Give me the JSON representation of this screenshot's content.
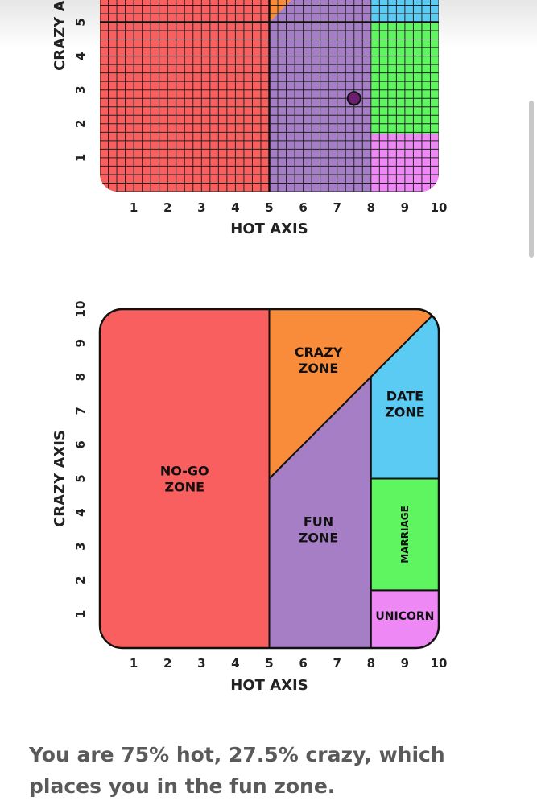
{
  "chart_data": [
    {
      "type": "scatter",
      "xlabel": "HOT AXIS",
      "ylabel": "CRAZY AXIS",
      "xticks": [
        "1",
        "2",
        "3",
        "4",
        "5",
        "6",
        "7",
        "8",
        "9",
        "10"
      ],
      "yticks": [
        "1",
        "2",
        "3",
        "4",
        "5"
      ],
      "xlim": [
        0,
        10
      ],
      "ylim": [
        0,
        10
      ],
      "grid": true,
      "point": {
        "x": 7.5,
        "y": 2.75
      },
      "colors": {
        "nogo": "#fa5f5f",
        "crazy": "#f98c3b",
        "fun": "#a67ec6",
        "date": "#5ccbf3",
        "marriage": "#5ef560",
        "unicorn": "#ee88f4",
        "point": "#6b1d6e"
      }
    },
    {
      "type": "area",
      "xlabel": "HOT AXIS",
      "ylabel": "CRAZY AXIS",
      "xticks": [
        "1",
        "2",
        "3",
        "4",
        "5",
        "6",
        "7",
        "8",
        "9",
        "10"
      ],
      "yticks": [
        "1",
        "2",
        "3",
        "4",
        "5",
        "6",
        "7",
        "8",
        "9",
        "10"
      ],
      "xlim": [
        0,
        10
      ],
      "ylim": [
        0,
        10
      ],
      "grid": false,
      "zones": [
        {
          "key": "nogo",
          "lines": [
            "NO-GO",
            "ZONE"
          ],
          "color": "#fa5f5f"
        },
        {
          "key": "crazy",
          "lines": [
            "CRAZY",
            "ZONE"
          ],
          "color": "#f98c3b"
        },
        {
          "key": "fun",
          "lines": [
            "FUN",
            "ZONE"
          ],
          "color": "#a67ec6"
        },
        {
          "key": "date",
          "lines": [
            "DATE",
            "ZONE"
          ],
          "color": "#5ccbf3"
        },
        {
          "key": "marriage",
          "lines": [
            "MARRIAGE"
          ],
          "color": "#5ef560"
        },
        {
          "key": "unicorn",
          "lines": [
            "UNICORN"
          ],
          "color": "#ee88f4"
        }
      ]
    }
  ],
  "result": {
    "text": "You are 75% hot, 27.5% crazy, which places you in the fun zone."
  }
}
